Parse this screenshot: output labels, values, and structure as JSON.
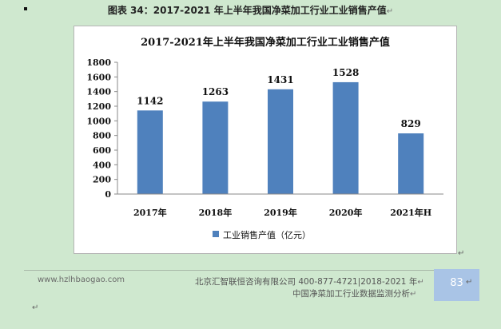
{
  "document": {
    "caption": "图表 34：2017-2021 年上半年我国净菜加工行业工业销售产值",
    "paragraph_mark": "↵",
    "footer_site": "www.hzlhbaogao.com",
    "footer_company": "北京汇智联恒咨询有限公司 400-877-4721|2018-2021 年",
    "footer_subtitle": "中国净菜加工行业数据监测分析",
    "page_number": "83"
  },
  "chart_data": {
    "type": "bar",
    "title": "2017-2021年上半年我国净菜加工行业工业销售产值",
    "categories": [
      "2017年",
      "2018年",
      "2019年",
      "2020年",
      "2021年H"
    ],
    "series": [
      {
        "name": "工业销售产值（亿元）",
        "values": [
          1142,
          1263,
          1431,
          1528,
          829
        ]
      }
    ],
    "data_labels": [
      "1142",
      "1263",
      "1431",
      "1528",
      "829"
    ],
    "y_ticks": [
      "0",
      "200",
      "400",
      "600",
      "800",
      "1000",
      "1200",
      "1400",
      "1600",
      "1800"
    ],
    "ylim": [
      0,
      1800
    ],
    "xlabel": "",
    "ylabel": "",
    "grid": false,
    "legend_position": "bottom",
    "colors": {
      "bar": "#4f81bd",
      "axis": "#888888"
    }
  }
}
